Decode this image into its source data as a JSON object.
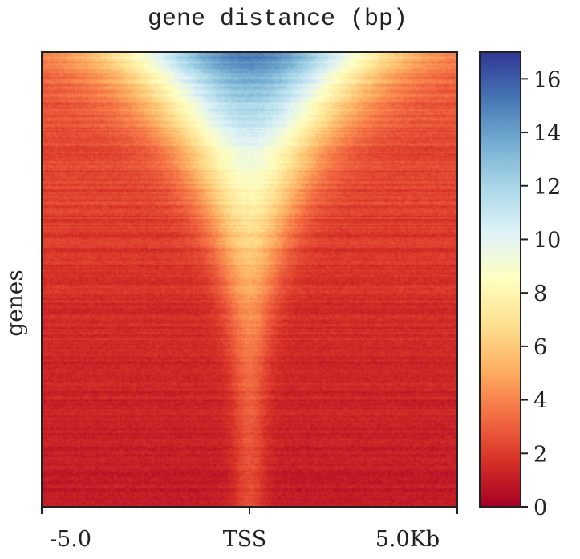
{
  "chart_data": {
    "type": "heatmap",
    "title": "gene distance (bp)",
    "xlabel": "",
    "ylabel": "genes",
    "x_ticks": [
      "-5.0",
      "TSS",
      "5.0Kb"
    ],
    "x_range_kb": [
      -5,
      5
    ],
    "colorbar": {
      "range": [
        0,
        17
      ],
      "ticks": [
        0,
        2,
        4,
        6,
        8,
        10,
        12,
        14,
        16
      ],
      "colormap": "RdYlBu",
      "colormap_stops": [
        "#a50026",
        "#d73027",
        "#f46d43",
        "#fdae61",
        "#fee090",
        "#ffffbf",
        "#e0f3f8",
        "#abd9e9",
        "#74add1",
        "#4575b4",
        "#313695"
      ]
    },
    "profile": {
      "description": "signal sharply peaked at TSS, strongest in top-ranked genes, decaying down the sorted gene list",
      "peak_value_top_row": 15,
      "peak_value_middle_rows": 6,
      "peak_value_bottom_rows": 2.5,
      "background_value_top_rows": 3,
      "background_value_bottom_rows": 1
    }
  }
}
